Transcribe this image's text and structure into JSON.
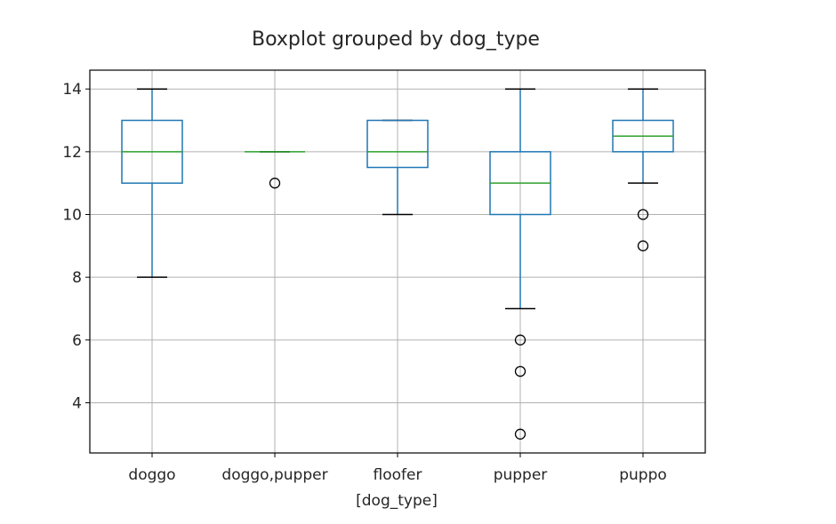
{
  "chart_data": {
    "type": "box",
    "title": "Boxplot grouped by dog_type",
    "xlabel": "[dog_type]",
    "ylabel": "",
    "categories": [
      "doggo",
      "doggo,pupper",
      "floofer",
      "pupper",
      "puppo"
    ],
    "yticks": [
      4,
      6,
      8,
      10,
      12,
      14
    ],
    "ylim": [
      2.4,
      14.6
    ],
    "grid": true,
    "boxes": [
      {
        "category": "doggo",
        "whislo": 8,
        "q1": 11,
        "med": 12,
        "q3": 13,
        "whishi": 14,
        "fliers": []
      },
      {
        "category": "doggo,pupper",
        "whislo": 12,
        "q1": 12,
        "med": 12,
        "q3": 12,
        "whishi": 12,
        "fliers": [
          11
        ]
      },
      {
        "category": "floofer",
        "whislo": 10,
        "q1": 11.5,
        "med": 12,
        "q3": 13,
        "whishi": 13,
        "fliers": []
      },
      {
        "category": "pupper",
        "whislo": 7,
        "q1": 10,
        "med": 11,
        "q3": 12,
        "whishi": 14,
        "fliers": [
          6,
          5,
          3
        ]
      },
      {
        "category": "puppo",
        "whislo": 11,
        "q1": 12,
        "med": 12.5,
        "q3": 13,
        "whishi": 14,
        "fliers": [
          10,
          9
        ]
      }
    ],
    "colors": {
      "box": "#1f77b4",
      "median": "#2ca02c",
      "whisker_cap": "#000000",
      "flier": "#000000",
      "grid": "#b0b0b0",
      "axes": "#000000"
    }
  }
}
